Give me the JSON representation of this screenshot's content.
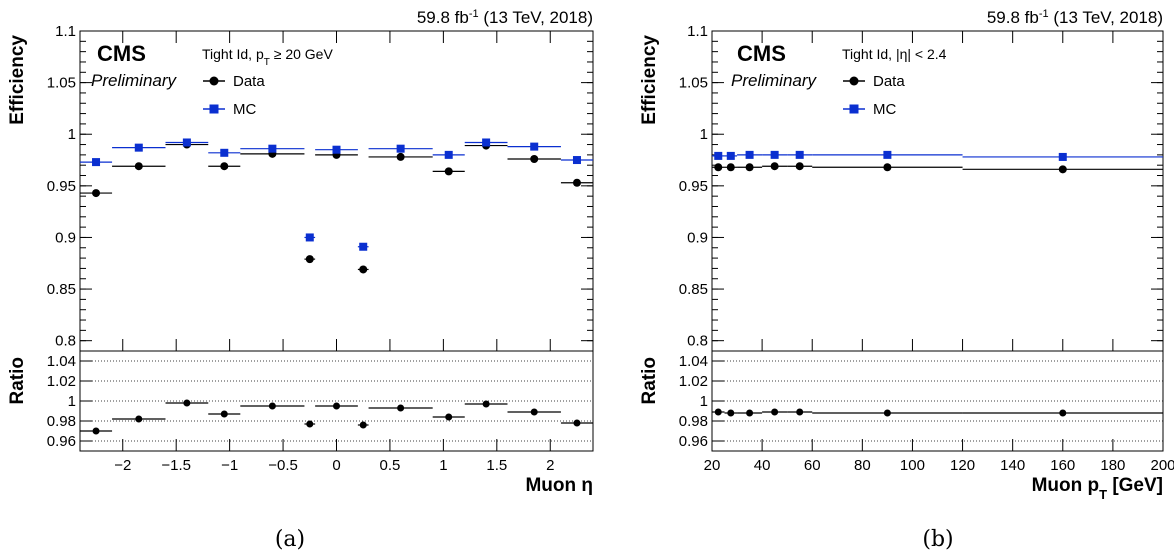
{
  "chart_data": [
    {
      "type": "scatter",
      "lumi": "59.8 fb",
      "lumi_sup": "-1",
      "lumi_rest": " (13 TeV, 2018)",
      "cms": "CMS",
      "preliminary": "Preliminary",
      "selection": "Tight Id, p",
      "selection_sub": "T",
      "selection_rest": " ≥ 20 GeV",
      "ylabel": "Efficiency",
      "ratio_ylabel": "Ratio",
      "xlabel": "Muon η",
      "xlim": [
        -2.4,
        2.4
      ],
      "ylim": [
        0.79,
        1.1
      ],
      "ratio_ylim": [
        0.95,
        1.05
      ],
      "x_ticks": [
        -2,
        -1.5,
        -1,
        -0.5,
        0,
        0.5,
        1,
        1.5,
        2
      ],
      "x_tick_labels": [
        "−2",
        "−1.5",
        "−1",
        "−0.5",
        "0",
        "0.5",
        "1",
        "1.5",
        "2"
      ],
      "y_ticks": [
        0.8,
        0.85,
        0.9,
        0.95,
        1,
        1.05,
        1.1
      ],
      "y_tick_labels": [
        "0.8",
        "0.85",
        "0.9",
        "0.95",
        "1",
        "1.05",
        "1.1"
      ],
      "ratio_ticks": [
        0.96,
        0.98,
        1,
        1.02,
        1.04
      ],
      "ratio_tick_labels": [
        "0.96",
        "0.98",
        "1",
        "1.02",
        "1.04"
      ],
      "bins": [
        [
          -2.4,
          -2.1
        ],
        [
          -2.1,
          -1.6
        ],
        [
          -1.6,
          -1.2
        ],
        [
          -1.2,
          -0.9
        ],
        [
          -0.9,
          -0.3
        ],
        [
          -0.3,
          -0.2
        ],
        [
          -0.2,
          0.2
        ],
        [
          0.2,
          0.3
        ],
        [
          0.3,
          0.9
        ],
        [
          0.9,
          1.2
        ],
        [
          1.2,
          1.6
        ],
        [
          1.6,
          2.1
        ],
        [
          2.1,
          2.4
        ]
      ],
      "series": [
        {
          "name": "Data",
          "color": "#000000",
          "marker": "circle",
          "values": [
            0.943,
            0.969,
            0.99,
            0.969,
            0.981,
            0.879,
            0.98,
            0.869,
            0.978,
            0.964,
            0.989,
            0.976,
            0.953
          ]
        },
        {
          "name": "MC",
          "color": "#0a2fd0",
          "marker": "square",
          "values": [
            0.973,
            0.987,
            0.992,
            0.982,
            0.986,
            0.9,
            0.985,
            0.891,
            0.986,
            0.98,
            0.992,
            0.988,
            0.975
          ]
        }
      ],
      "ratio": [
        0.97,
        0.982,
        0.998,
        0.987,
        0.995,
        0.977,
        0.995,
        0.976,
        0.993,
        0.984,
        0.997,
        0.989,
        0.978
      ],
      "caption": "(a)"
    },
    {
      "type": "scatter",
      "lumi": "59.8 fb",
      "lumi_sup": "-1",
      "lumi_rest": " (13 TeV, 2018)",
      "cms": "CMS",
      "preliminary": "Preliminary",
      "selection": "Tight Id, |η| < 2.4",
      "selection_sub": "",
      "selection_rest": "",
      "ylabel": "Efficiency",
      "ratio_ylabel": "Ratio",
      "xlabel": "Muon p",
      "xlabel_sub": "T",
      "xlabel_rest": " [GeV]",
      "xlim": [
        20,
        200
      ],
      "ylim": [
        0.79,
        1.1
      ],
      "ratio_ylim": [
        0.95,
        1.05
      ],
      "x_ticks": [
        20,
        40,
        60,
        80,
        100,
        120,
        140,
        160,
        180,
        200
      ],
      "x_tick_labels": [
        "20",
        "40",
        "60",
        "80",
        "100",
        "120",
        "140",
        "160",
        "180",
        "200"
      ],
      "y_ticks": [
        0.8,
        0.85,
        0.9,
        0.95,
        1,
        1.05,
        1.1
      ],
      "y_tick_labels": [
        "0.8",
        "0.85",
        "0.9",
        "0.95",
        "1",
        "1.05",
        "1.1"
      ],
      "ratio_ticks": [
        0.96,
        0.98,
        1,
        1.02,
        1.04
      ],
      "ratio_tick_labels": [
        "0.96",
        "0.98",
        "1",
        "1.02",
        "1.04"
      ],
      "bins": [
        [
          20,
          25
        ],
        [
          25,
          30
        ],
        [
          30,
          40
        ],
        [
          40,
          50
        ],
        [
          50,
          60
        ],
        [
          60,
          120
        ],
        [
          120,
          200
        ]
      ],
      "series": [
        {
          "name": "Data",
          "color": "#000000",
          "marker": "circle",
          "values": [
            0.968,
            0.968,
            0.968,
            0.969,
            0.969,
            0.968,
            0.966
          ]
        },
        {
          "name": "MC",
          "color": "#0a2fd0",
          "marker": "square",
          "values": [
            0.979,
            0.979,
            0.98,
            0.98,
            0.98,
            0.98,
            0.978
          ]
        }
      ],
      "ratio": [
        0.989,
        0.988,
        0.988,
        0.989,
        0.989,
        0.988,
        0.988
      ],
      "caption": "(b)"
    }
  ]
}
